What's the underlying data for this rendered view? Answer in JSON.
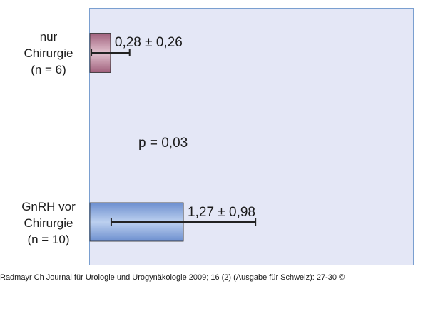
{
  "chart_data": {
    "type": "bar",
    "orientation": "horizontal",
    "categories": [
      [
        "nur",
        "Chirurgie",
        "(n = 6)"
      ],
      [
        "GnRH vor",
        "Chirurgie",
        "(n = 10)"
      ]
    ],
    "values": [
      0.28,
      1.27
    ],
    "errors": [
      0.26,
      0.98
    ],
    "value_labels": [
      "0,28 ± 0,26",
      "1,27 ± 0,98"
    ],
    "annotation": "p = 0,03",
    "xlim": [
      0,
      4.4
    ],
    "bar_colors": [
      "#b07890",
      "#7f9fd6"
    ],
    "plot_background": "#e4e7f6",
    "plot_border": "#7a9fd0",
    "grid": false
  },
  "source": "Radmayr Ch Journal für Urologie und Urogynäkologie 2009; 16 (2) (Ausgabe für Schweiz): 27-30 ©"
}
